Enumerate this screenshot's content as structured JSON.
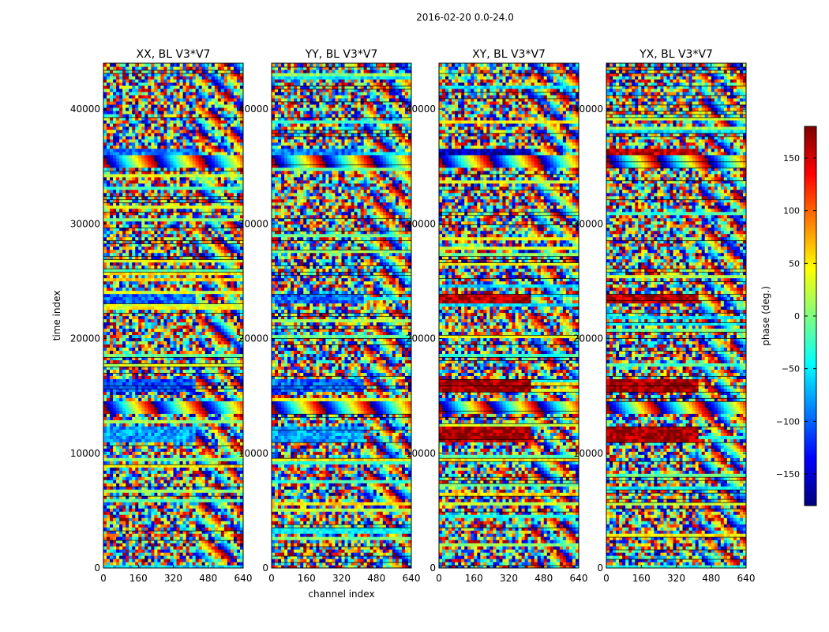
{
  "figure_title": "2016-02-20 0.0-24.0",
  "colorbar": {
    "label": "phase (deg.)",
    "vmin": -180,
    "vmax": 180,
    "ticks": [
      150,
      100,
      50,
      0,
      -50,
      -100,
      -150
    ],
    "tick_labels": [
      "150",
      "100",
      "50",
      "0",
      "−50",
      "−100",
      "−150"
    ],
    "colormap": [
      "#00007f",
      "#0000ff",
      "#007fff",
      "#00ffff",
      "#7fff7f",
      "#ffff00",
      "#ff7f00",
      "#ff0000",
      "#7f0000"
    ]
  },
  "chart_data": [
    {
      "type": "heatmap",
      "title": "XX, BL V3*V7",
      "xlabel": "",
      "ylabel": "time index",
      "xlim": [
        0,
        640
      ],
      "ylim": [
        0,
        44000
      ],
      "xticks": [
        0,
        160,
        320,
        480,
        640
      ],
      "yticks": [
        0,
        10000,
        20000,
        30000,
        40000
      ],
      "value": "phase (deg.)",
      "bias_bands": [
        [
          35000,
          36500,
          -90
        ],
        [
          23000,
          24000,
          -100
        ],
        [
          15500,
          16500,
          -110
        ],
        [
          11000,
          12500,
          -80
        ]
      ],
      "fringe_bands": [
        [
          13500,
          14500
        ],
        [
          35000,
          36000
        ]
      ]
    },
    {
      "type": "heatmap",
      "title": "YY, BL V3*V7",
      "xlabel": "channel index",
      "ylabel": "",
      "xlim": [
        0,
        640
      ],
      "ylim": [
        0,
        44000
      ],
      "xticks": [
        0,
        160,
        320,
        480,
        640
      ],
      "yticks": [
        0,
        10000,
        20000,
        30000,
        40000
      ],
      "value": "phase (deg.)",
      "bias_bands": [
        [
          35000,
          36500,
          -90
        ],
        [
          23000,
          24000,
          -100
        ],
        [
          15500,
          16500,
          -100
        ],
        [
          11000,
          12500,
          -80
        ]
      ],
      "fringe_bands": [
        [
          13500,
          14500
        ],
        [
          35000,
          36000
        ]
      ]
    },
    {
      "type": "heatmap",
      "title": "XY, BL V3*V7",
      "xlabel": "",
      "ylabel": "",
      "xlim": [
        0,
        640
      ],
      "ylim": [
        0,
        44000
      ],
      "xticks": [
        0,
        160,
        320,
        480,
        640
      ],
      "yticks": [
        0,
        10000,
        20000,
        30000,
        40000
      ],
      "value": "phase (deg.)",
      "bias_bands": [
        [
          35000,
          36500,
          -160
        ],
        [
          23000,
          24000,
          160
        ],
        [
          15500,
          16500,
          170
        ],
        [
          11000,
          12500,
          170
        ]
      ],
      "fringe_bands": [
        [
          13500,
          14500
        ],
        [
          35000,
          36000
        ]
      ]
    },
    {
      "type": "heatmap",
      "title": "YX, BL V3*V7",
      "xlabel": "",
      "ylabel": "",
      "xlim": [
        0,
        640
      ],
      "ylim": [
        0,
        44000
      ],
      "xticks": [
        0,
        160,
        320,
        480,
        640
      ],
      "yticks": [
        0,
        10000,
        20000,
        30000,
        40000
      ],
      "value": "phase (deg.)",
      "bias_bands": [
        [
          35000,
          36500,
          160
        ],
        [
          23000,
          24000,
          165
        ],
        [
          15500,
          16500,
          170
        ],
        [
          11000,
          12500,
          170
        ]
      ],
      "fringe_bands": [
        [
          13500,
          14500
        ],
        [
          35000,
          36000
        ]
      ]
    }
  ]
}
